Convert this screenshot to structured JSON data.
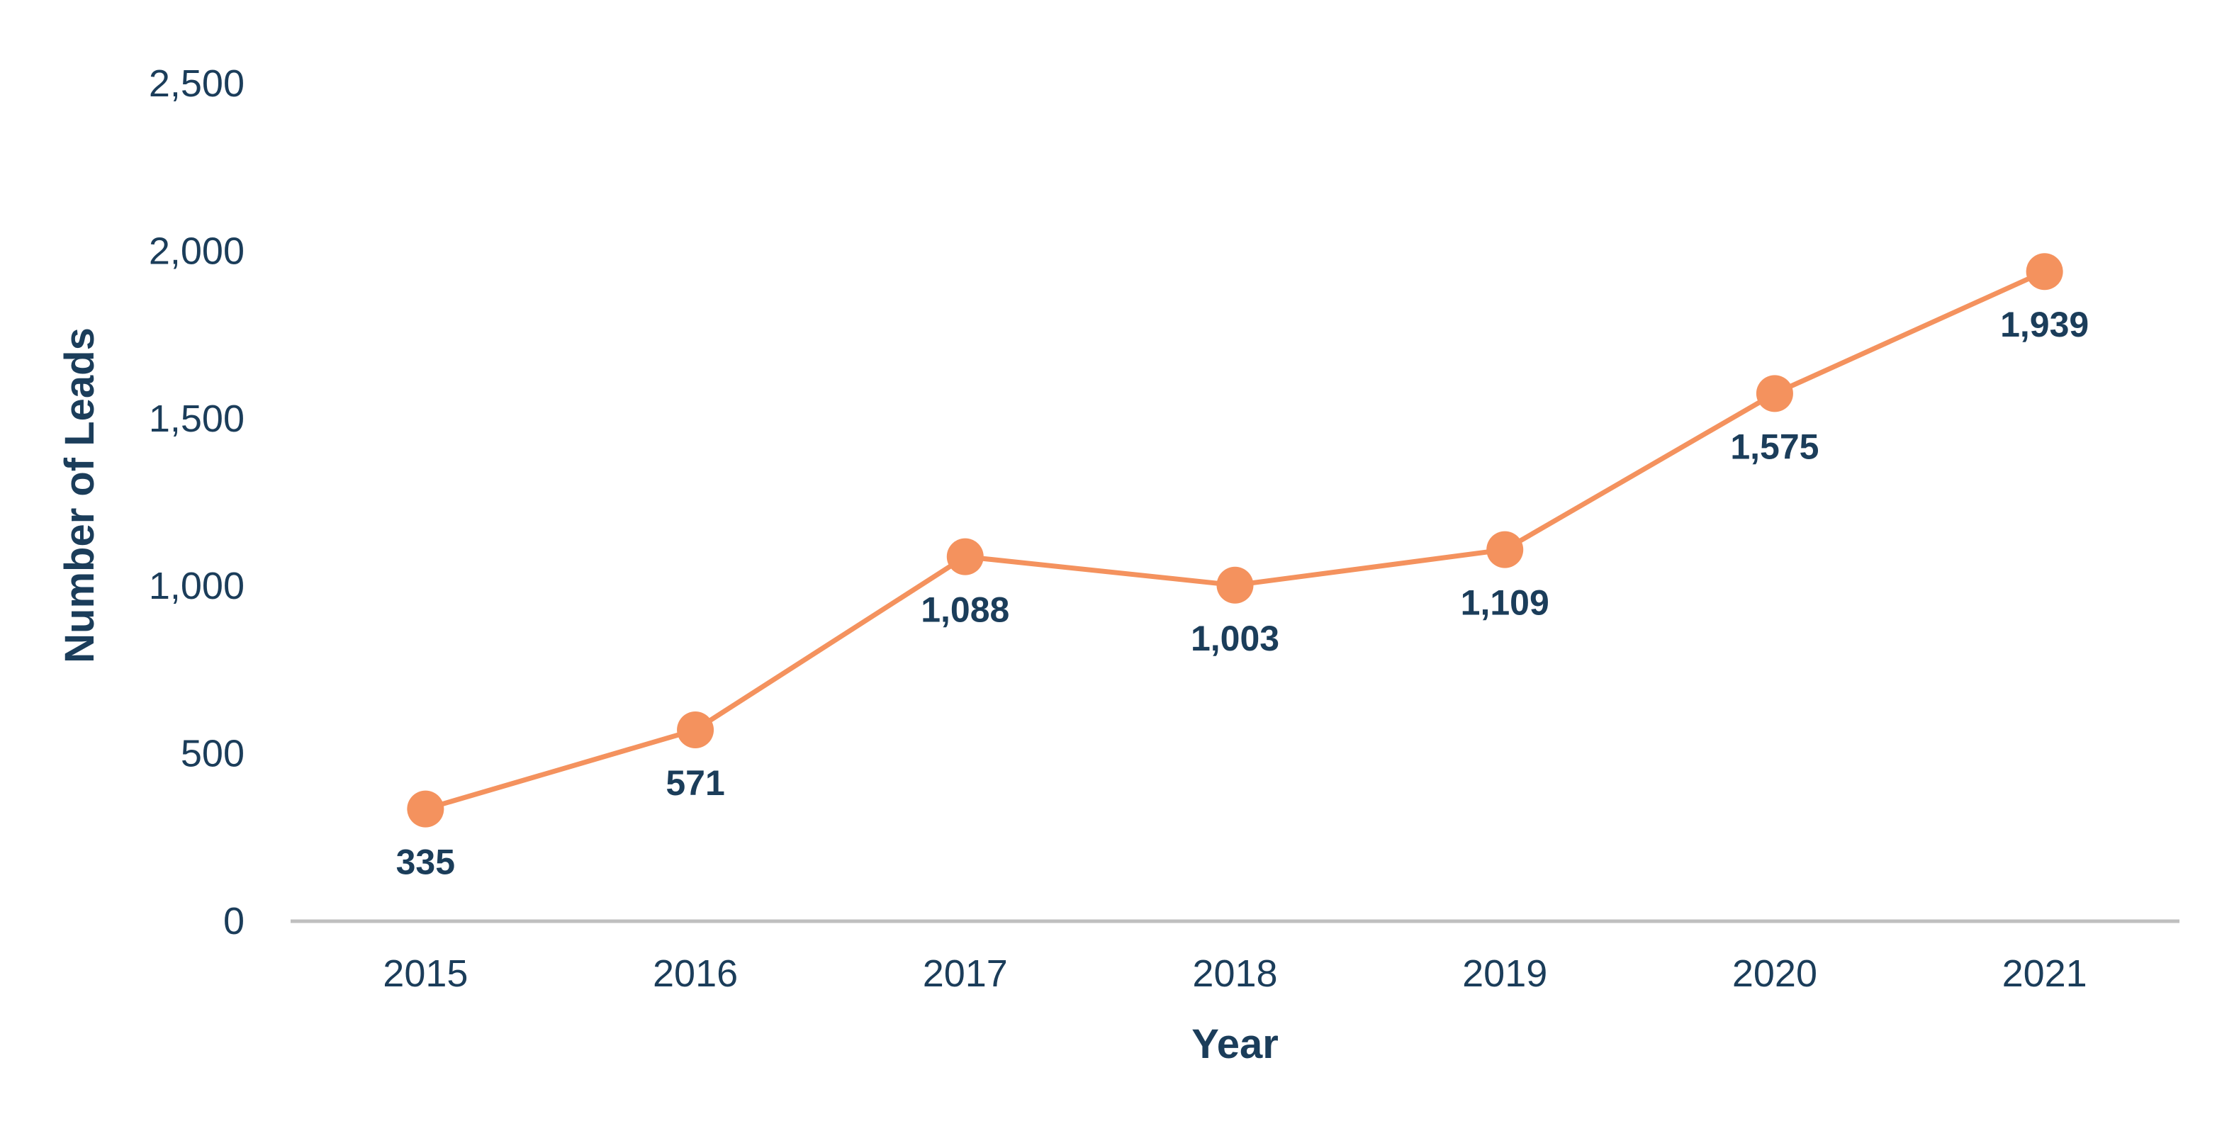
{
  "chart_data": {
    "type": "line",
    "title": "",
    "xlabel": "Year",
    "ylabel": "Number of Leads",
    "categories": [
      "2015",
      "2016",
      "2017",
      "2018",
      "2019",
      "2020",
      "2021"
    ],
    "series": [
      {
        "values": [
          335,
          571,
          1088,
          1003,
          1109,
          1575,
          1939
        ],
        "labels": [
          "335",
          "571",
          "1,088",
          "1,003",
          "1,109",
          "1,575",
          "1,939"
        ]
      }
    ],
    "ylim": [
      0,
      2500
    ],
    "yticks": [
      0,
      500,
      1000,
      1500,
      2000,
      2500
    ],
    "ytick_labels": [
      "0",
      "500",
      "1,000",
      "1,500",
      "2,000",
      "2,500"
    ],
    "grid": false,
    "legend": "none",
    "colors": {
      "line": "#f4925e",
      "marker": "#f4925e",
      "text": "#1b3d5a",
      "axis": "#bfbfbf"
    }
  }
}
